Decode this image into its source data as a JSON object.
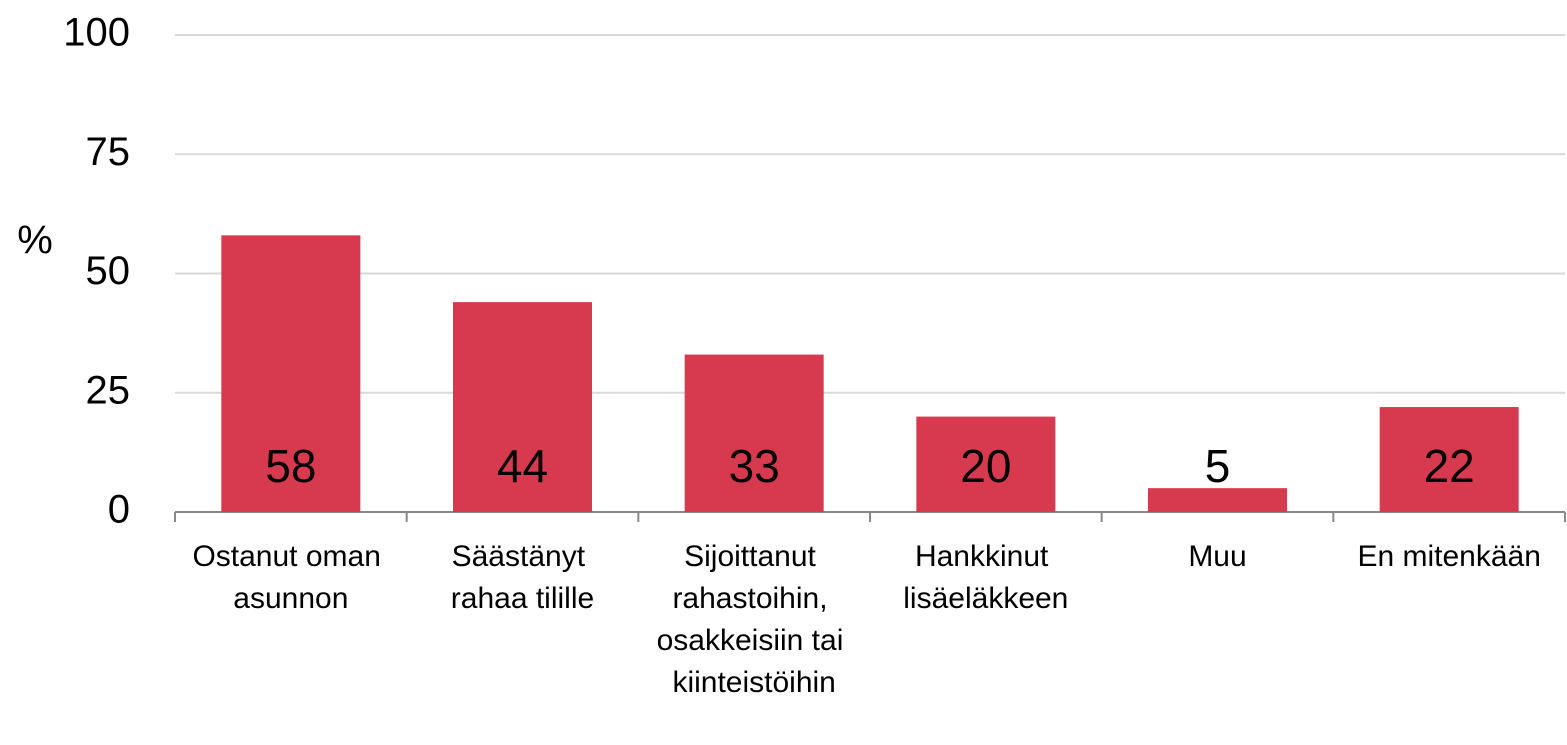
{
  "chart_data": {
    "type": "bar",
    "y_label": "%",
    "categories": [
      "Ostanut oman asunnon",
      "Säästänyt rahaa tilille",
      "Sijoittanut rahastoihin, osakkeisiin tai kiinteistöihin",
      "Hankkinut lisäeläkkeen",
      "Muu",
      "En mitenkään"
    ],
    "values": [
      58,
      44,
      33,
      20,
      5,
      22
    ],
    "color": "#d7394f",
    "ylim": [
      0,
      100
    ],
    "yticks": [
      0,
      25,
      50,
      75,
      100
    ],
    "grid": true
  }
}
